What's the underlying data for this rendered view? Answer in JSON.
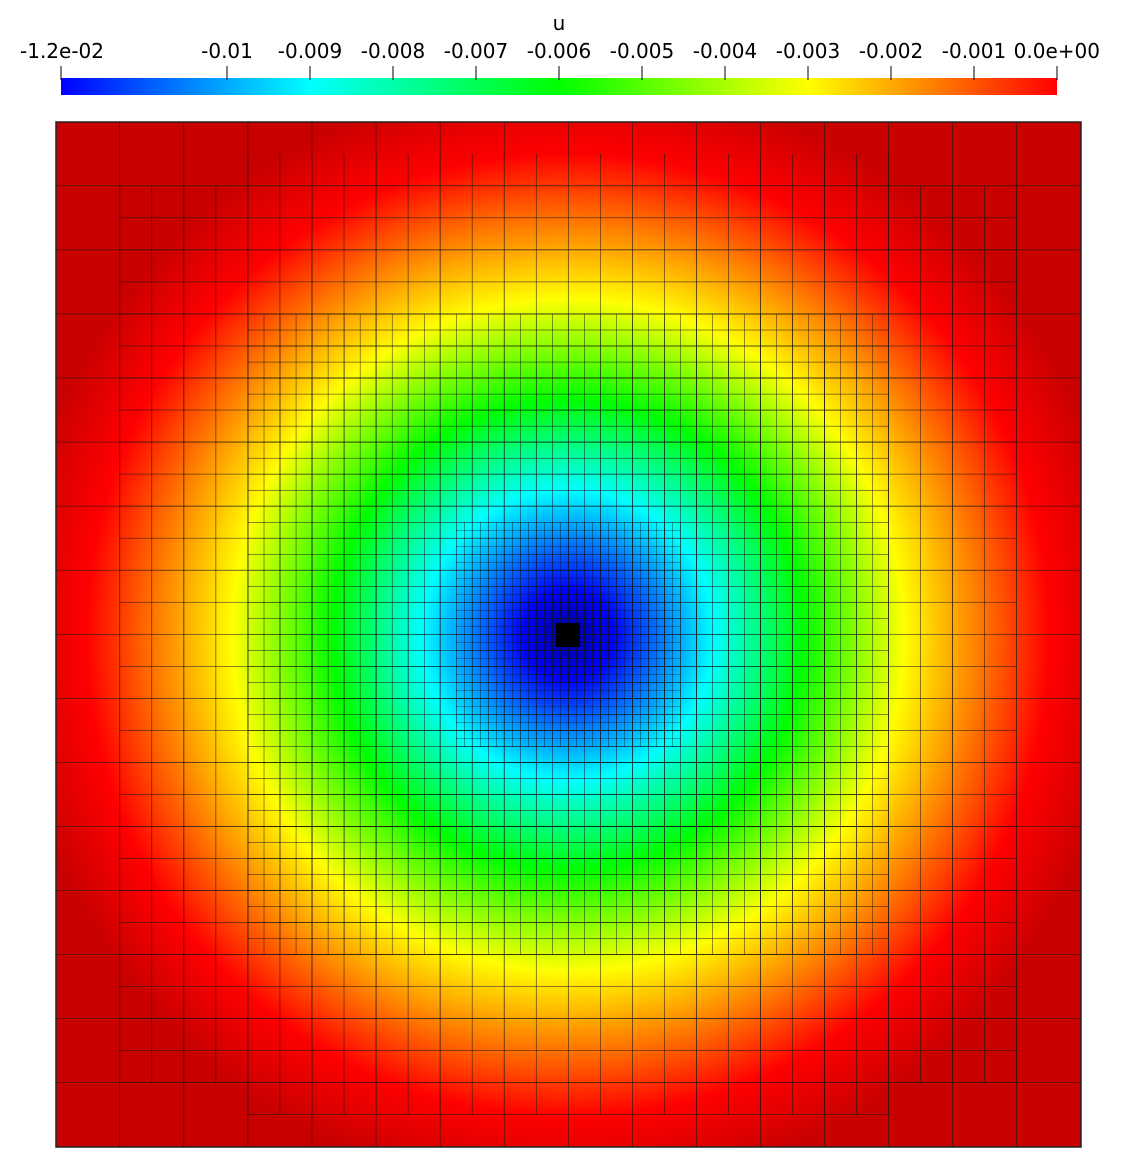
{
  "chart_data": {
    "type": "colorbar-field",
    "title": "u",
    "xlim": [
      -0.012,
      0
    ],
    "xticks": [
      {
        "value": -0.012,
        "label": "-1.2e-02"
      },
      -0.01,
      -0.009,
      -0.008,
      -0.007,
      -0.006,
      -0.005,
      -0.004,
      -0.003,
      -0.002,
      -0.001,
      {
        "value": 0,
        "label": "0.0e+00"
      }
    ],
    "colormap": [
      "#0000ff",
      "#00ffff",
      "#00ff00",
      "#ffff00",
      "#ff0000"
    ]
  }
}
